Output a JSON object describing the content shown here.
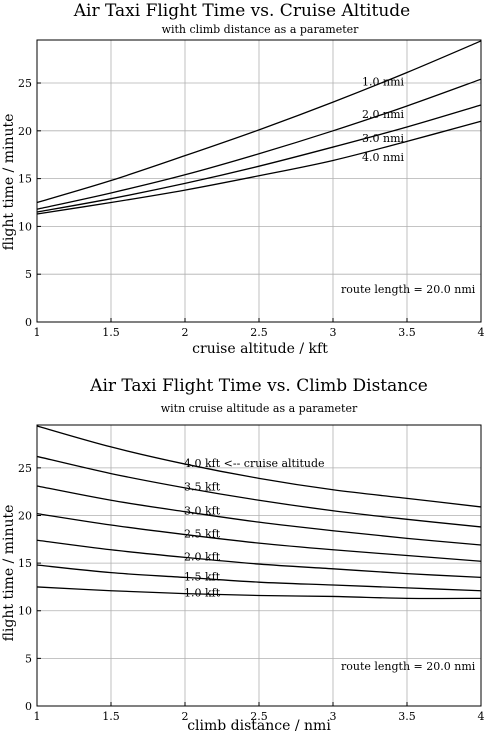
{
  "chart_data": [
    {
      "type": "line",
      "title": "Air Taxi Flight Time vs. Cruise Altitude",
      "subtitle": "with climb distance as a parameter",
      "xlabel": "cruise altitude / kft",
      "ylabel": "flight time / minute",
      "xlim": [
        1,
        4
      ],
      "ylim": [
        0,
        29.5
      ],
      "xticks": [
        1,
        1.5,
        2,
        2.5,
        3,
        3.5,
        4
      ],
      "xtick_labels": [
        "1",
        "1.5",
        "2",
        "2.5",
        "3",
        "3.5",
        "4"
      ],
      "yticks": [
        0,
        5,
        10,
        15,
        20,
        25
      ],
      "ytick_labels": [
        "0",
        "5",
        "10",
        "15",
        "20",
        "25"
      ],
      "grid": true,
      "annotation": "route length = 20.0 nmi",
      "x": [
        1,
        1.5,
        2,
        2.5,
        3,
        3.5,
        4
      ],
      "series": [
        {
          "name": "1.0 nmi",
          "values": [
            12.5,
            14.8,
            17.4,
            20.1,
            23.0,
            26.1,
            29.4
          ]
        },
        {
          "name": "2.0 nmi",
          "values": [
            11.8,
            13.5,
            15.4,
            17.6,
            20.0,
            22.6,
            25.4
          ]
        },
        {
          "name": "3.0 nmi",
          "values": [
            11.5,
            12.9,
            14.5,
            16.3,
            18.3,
            20.4,
            22.7
          ]
        },
        {
          "name": "4.0 nmi",
          "values": [
            11.3,
            12.5,
            13.8,
            15.3,
            16.9,
            18.9,
            21.0
          ]
        }
      ]
    },
    {
      "type": "line",
      "title": "Air Taxi Flight Time vs. Climb Distance",
      "subtitle": "witn cruise altitude as a parameter",
      "xlabel": "climb distance / nmi",
      "ylabel": "flight time / minute",
      "xlim": [
        1,
        4
      ],
      "ylim": [
        0,
        29.5
      ],
      "xticks": [
        1,
        1.5,
        2,
        2.5,
        3,
        3.5,
        4
      ],
      "xtick_labels": [
        "1",
        "1.5",
        "2",
        "2.5",
        "3",
        "3.5",
        "4"
      ],
      "yticks": [
        0,
        5,
        10,
        15,
        20,
        25
      ],
      "ytick_labels": [
        "0",
        "5",
        "10",
        "15",
        "20",
        "25"
      ],
      "grid": true,
      "annotation": "route length = 20.0 nmi",
      "x": [
        1,
        1.5,
        2,
        2.5,
        3,
        3.5,
        4
      ],
      "series": [
        {
          "name": "4.0 kft  <-- cruise altitude",
          "values": [
            29.4,
            27.2,
            25.4,
            23.9,
            22.7,
            21.8,
            20.9
          ]
        },
        {
          "name": "3.5 kft",
          "values": [
            26.2,
            24.4,
            22.9,
            21.6,
            20.5,
            19.6,
            18.8
          ]
        },
        {
          "name": "3.0 kft",
          "values": [
            23.1,
            21.6,
            20.4,
            19.3,
            18.4,
            17.6,
            16.9
          ]
        },
        {
          "name": "2.5 kft",
          "values": [
            20.2,
            19.0,
            18.0,
            17.1,
            16.4,
            15.8,
            15.2
          ]
        },
        {
          "name": "2.0 kft",
          "values": [
            17.4,
            16.4,
            15.6,
            14.9,
            14.4,
            13.9,
            13.5
          ]
        },
        {
          "name": "1.5 kft",
          "values": [
            14.8,
            14.0,
            13.5,
            13.0,
            12.7,
            12.4,
            12.1
          ]
        },
        {
          "name": "1.0 kft",
          "values": [
            12.5,
            12.1,
            11.8,
            11.6,
            11.5,
            11.3,
            11.3
          ]
        }
      ]
    }
  ]
}
